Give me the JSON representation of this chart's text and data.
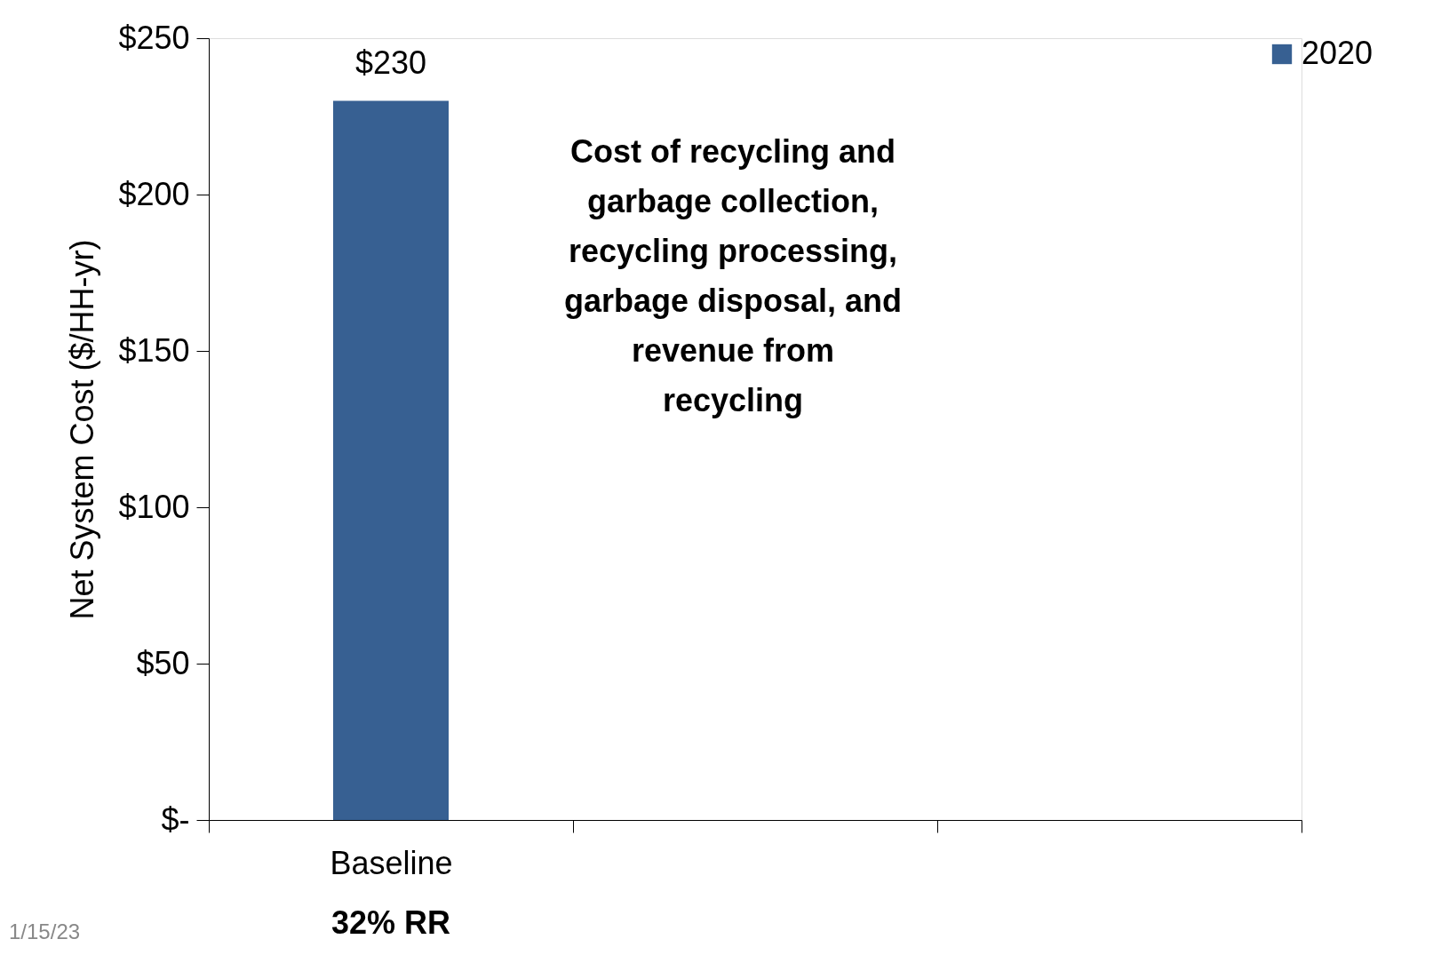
{
  "chart_data": {
    "type": "bar",
    "ylabel": "Net System Cost ($/HH-yr)",
    "categories": [
      "Baseline",
      null,
      null
    ],
    "series": [
      {
        "name": "2020",
        "color": "#376092",
        "values": [
          230,
          null,
          null
        ],
        "value_labels": [
          "$230",
          null,
          null
        ]
      }
    ],
    "ylim": [
      0,
      250
    ],
    "yticks": [
      {
        "value": 0,
        "label": "$-"
      },
      {
        "value": 50,
        "label": "$50"
      },
      {
        "value": 100,
        "label": "$100"
      },
      {
        "value": 150,
        "label": "$150"
      },
      {
        "value": 200,
        "label": "$200"
      },
      {
        "value": 250,
        "label": "$250"
      }
    ],
    "grid": false,
    "legend": "top right",
    "annotations": [
      "Cost of recycling and garbage collection, recycling processing, garbage disposal, and revenue from recycling",
      "32% RR",
      "1/15/23"
    ]
  }
}
